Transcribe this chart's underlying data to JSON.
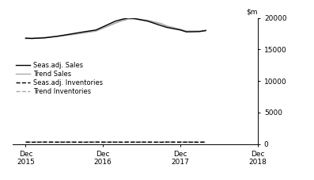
{
  "ylim": [
    0,
    20000
  ],
  "yticks": [
    0,
    5000,
    10000,
    15000,
    20000
  ],
  "xlim": [
    2015.75,
    2018.33
  ],
  "xtick_positions": [
    2015.92,
    2016.92,
    2017.92,
    2018.92
  ],
  "xtick_labels": [
    "Dec\n2015",
    "Dec\n2016",
    "Dec\n2017",
    "Dec\n2018"
  ],
  "background_color": "#ffffff",
  "seas_sales_x": [
    2015.92,
    2016.0,
    2016.17,
    2016.33,
    2016.5,
    2016.67,
    2016.83,
    2016.92,
    2017.08,
    2017.17,
    2017.25,
    2017.33,
    2017.5,
    2017.67,
    2017.75,
    2017.92,
    2018.0,
    2018.17,
    2018.25
  ],
  "seas_sales_y": [
    16800,
    16750,
    16850,
    17100,
    17450,
    17800,
    18100,
    18600,
    19500,
    19800,
    20000,
    19900,
    19500,
    18800,
    18500,
    18100,
    17800,
    17850,
    18000
  ],
  "trend_sales_x": [
    2015.92,
    2016.0,
    2016.17,
    2016.33,
    2016.5,
    2016.67,
    2016.83,
    2016.92,
    2017.08,
    2017.17,
    2017.25,
    2017.33,
    2017.5,
    2017.67,
    2017.75,
    2017.92,
    2018.0,
    2018.17,
    2018.25
  ],
  "trend_sales_y": [
    16750,
    16780,
    16900,
    17100,
    17350,
    17650,
    17950,
    18400,
    19200,
    19600,
    19850,
    19900,
    19600,
    19100,
    18700,
    18200,
    17900,
    17900,
    18050
  ],
  "seas_inv_x": [
    2015.92,
    2016.0,
    2016.17,
    2016.33,
    2016.5,
    2016.67,
    2016.83,
    2016.92,
    2017.08,
    2017.17,
    2017.25,
    2017.33,
    2017.5,
    2017.67,
    2017.75,
    2017.92,
    2018.0,
    2018.17,
    2018.25
  ],
  "seas_inv_y": [
    300,
    280,
    310,
    290,
    300,
    280,
    310,
    290,
    300,
    280,
    310,
    290,
    300,
    280,
    310,
    290,
    300,
    280,
    300
  ],
  "trend_inv_x": [
    2015.92,
    2016.0,
    2016.17,
    2016.33,
    2016.5,
    2016.67,
    2016.83,
    2016.92,
    2017.08,
    2017.17,
    2017.25,
    2017.33,
    2017.5,
    2017.67,
    2017.75,
    2017.92,
    2018.0,
    2018.17,
    2018.25
  ],
  "trend_inv_y": [
    290,
    292,
    295,
    296,
    297,
    297,
    298,
    298,
    298,
    298,
    298,
    298,
    298,
    298,
    298,
    298,
    298,
    298,
    298
  ],
  "seas_sales_color": "#000000",
  "trend_sales_color": "#aaaaaa",
  "seas_inv_color": "#000000",
  "trend_inv_color": "#aaaaaa",
  "line_lw_solid": 1.0,
  "line_lw_trend": 1.3,
  "font_size": 6.5,
  "legend_font_size": 6.0,
  "legend_entries": [
    {
      "label": "Seas.adj. Sales",
      "color": "#000000",
      "linestyle": "-"
    },
    {
      "label": "Trend Sales",
      "color": "#aaaaaa",
      "linestyle": "-"
    },
    {
      "label": "Seas.adj. Inventories",
      "color": "#000000",
      "linestyle": "--"
    },
    {
      "label": "Trend Inventories",
      "color": "#aaaaaa",
      "linestyle": "--"
    }
  ]
}
